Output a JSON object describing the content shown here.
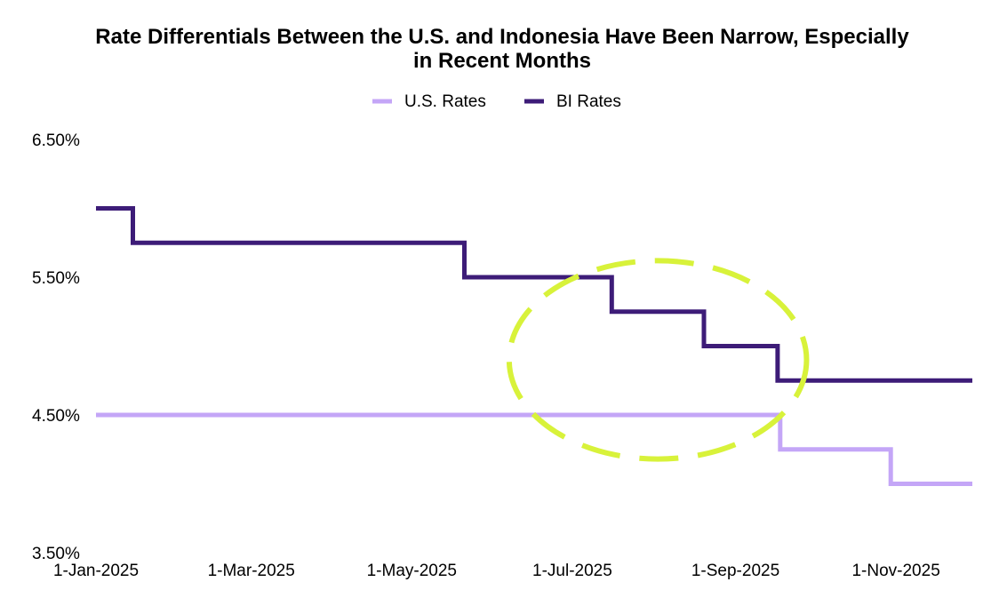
{
  "chart_data": {
    "type": "line",
    "title": "Rate Differentials Between the U.S. and Indonesia Have Been Narrow, Especially in Recent Months",
    "title_lines": [
      "Rate Differentials Between the U.S. and Indonesia Have Been Narrow, Especially",
      "in Recent Months"
    ],
    "xlabel": "",
    "ylabel": "",
    "x_axis": {
      "scale": "date",
      "range": [
        "2025-01-01",
        "2025-11-30"
      ],
      "tick_values": [
        "2025-01-01",
        "2025-03-01",
        "2025-05-01",
        "2025-07-01",
        "2025-09-01",
        "2025-11-01"
      ],
      "tick_labels": [
        "1-Jan-2025",
        "1-Mar-2025",
        "1-May-2025",
        "1-Jul-2025",
        "1-Sep-2025",
        "1-Nov-2025"
      ]
    },
    "y_axis": {
      "range": [
        3.5,
        6.5
      ],
      "tick_values": [
        3.5,
        4.5,
        5.5,
        6.5
      ],
      "tick_labels": [
        "3.50%",
        "4.50%",
        "5.50%",
        "6.50%"
      ]
    },
    "grid": false,
    "legend_position": "top-center",
    "series": [
      {
        "name": "U.S. Rates",
        "color": "#c4a6f7",
        "step": true,
        "points": [
          {
            "x": "2025-01-01",
            "y": 4.5
          },
          {
            "x": "2025-09-18",
            "y": 4.25
          },
          {
            "x": "2025-10-30",
            "y": 4.0
          },
          {
            "x": "2025-11-30",
            "y": 4.0
          }
        ]
      },
      {
        "name": "BI Rates",
        "color": "#3d1c78",
        "step": true,
        "points": [
          {
            "x": "2025-01-01",
            "y": 6.0
          },
          {
            "x": "2025-01-15",
            "y": 5.75
          },
          {
            "x": "2025-05-21",
            "y": 5.5
          },
          {
            "x": "2025-07-16",
            "y": 5.25
          },
          {
            "x": "2025-08-20",
            "y": 5.0
          },
          {
            "x": "2025-09-17",
            "y": 4.75
          },
          {
            "x": "2025-11-30",
            "y": 4.75
          }
        ]
      }
    ],
    "annotations": [
      {
        "type": "dashed-ellipse",
        "color": "#d8f23a",
        "x_range": [
          "2025-06-07",
          "2025-09-28"
        ],
        "y_range": [
          4.18,
          5.62
        ]
      }
    ]
  }
}
